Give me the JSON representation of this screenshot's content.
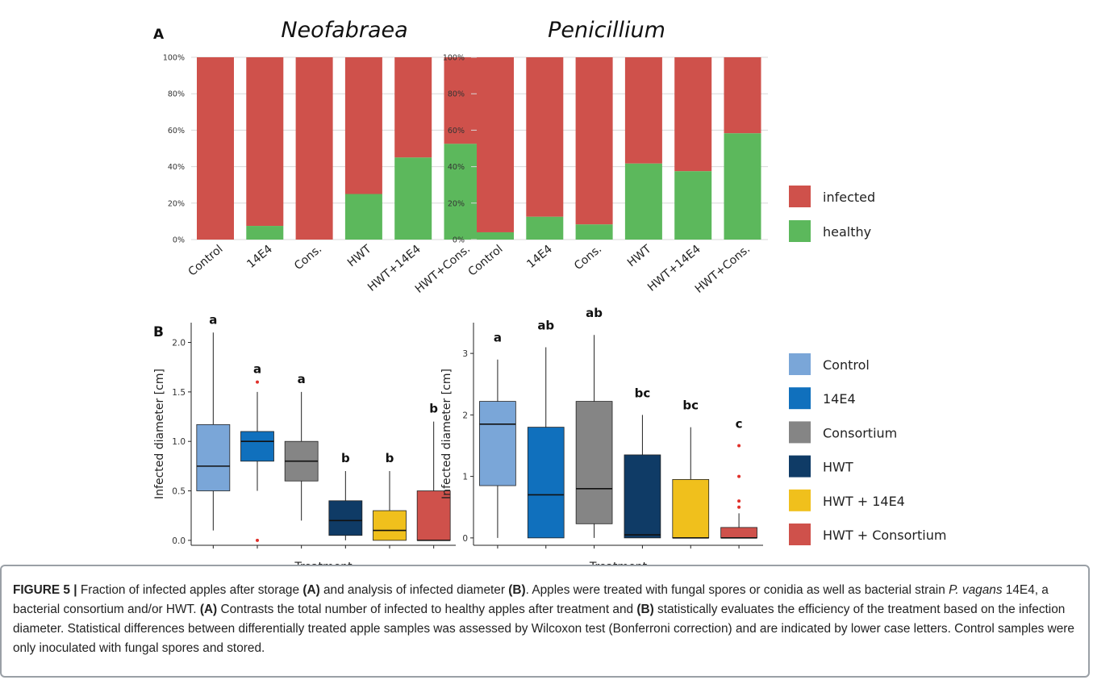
{
  "figure": {
    "panel_a_label": "A",
    "panel_b_label": "B",
    "legend_a": [
      {
        "label": "infected",
        "color": "#cf514b"
      },
      {
        "label": "healthy",
        "color": "#5cb85c"
      }
    ],
    "legend_b": [
      {
        "label": "Control",
        "color": "#7aa6d8"
      },
      {
        "label": "14E4",
        "color": "#1070bd"
      },
      {
        "label": "Consortium",
        "color": "#858585"
      },
      {
        "label": "HWT",
        "color": "#0f3b66"
      },
      {
        "label": "HWT + 14E4",
        "color": "#f0c01c"
      },
      {
        "label": "HWT + Consortium",
        "color": "#cf514b"
      }
    ]
  },
  "chart_data": [
    {
      "type": "bar",
      "stacked": true,
      "title": "Neofabraea",
      "categories": [
        "Control",
        "14E4",
        "Cons.",
        "HWT",
        "HWT+14E4",
        "HWT+Cons."
      ],
      "series": [
        {
          "name": "healthy",
          "values": [
            0,
            7.5,
            0,
            25,
            45,
            52.5
          ]
        },
        {
          "name": "infected",
          "values": [
            100,
            92.5,
            100,
            75,
            55,
            47.5
          ]
        }
      ],
      "yticks": [
        "0%",
        "20%",
        "40%",
        "60%",
        "80%",
        "100%"
      ],
      "ylim": [
        0,
        100
      ]
    },
    {
      "type": "bar",
      "stacked": true,
      "title": "Penicillium",
      "categories": [
        "Control",
        "14E4",
        "Cons.",
        "HWT",
        "HWT+14E4",
        "HWT+Cons."
      ],
      "series": [
        {
          "name": "healthy",
          "values": [
            4,
            12.5,
            8.3,
            41.7,
            37.5,
            58.3
          ]
        },
        {
          "name": "infected",
          "values": [
            96,
            87.5,
            91.7,
            58.3,
            62.5,
            41.7
          ]
        }
      ],
      "yticks": [
        "0%",
        "20%",
        "40%",
        "60%",
        "80%",
        "100%"
      ],
      "ylim": [
        0,
        100
      ]
    },
    {
      "type": "box",
      "xlabel": "Treatment",
      "ylabel": "Infected diameter [cm]",
      "ylim": [
        -0.05,
        2.2
      ],
      "yticks": [
        0,
        0.5,
        1,
        1.5,
        2
      ],
      "ytick_labels": [
        "0.0",
        "0.5",
        "1.0",
        "1.5",
        "2.0"
      ],
      "boxes": [
        {
          "name": "Control",
          "min": 0.1,
          "q1": 0.5,
          "median": 0.75,
          "q3": 1.17,
          "max": 2.1,
          "outliers": [],
          "letter": "a"
        },
        {
          "name": "14E4",
          "min": 0.5,
          "q1": 0.8,
          "median": 1.0,
          "q3": 1.1,
          "max": 1.5,
          "outliers": [
            1.6,
            0.0
          ],
          "letter": "a"
        },
        {
          "name": "Consortium",
          "min": 0.2,
          "q1": 0.6,
          "median": 0.8,
          "q3": 1.0,
          "max": 1.5,
          "outliers": [],
          "letter": "a"
        },
        {
          "name": "HWT",
          "min": 0.0,
          "q1": 0.05,
          "median": 0.2,
          "q3": 0.4,
          "max": 0.7,
          "outliers": [],
          "letter": "b"
        },
        {
          "name": "HWT + 14E4",
          "min": 0.0,
          "q1": 0.0,
          "median": 0.1,
          "q3": 0.3,
          "max": 0.7,
          "outliers": [],
          "letter": "b"
        },
        {
          "name": "HWT + Consortium",
          "min": 0.0,
          "q1": 0.0,
          "median": 0.0,
          "q3": 0.5,
          "max": 1.2,
          "outliers": [],
          "letter": "b"
        }
      ]
    },
    {
      "type": "box",
      "xlabel": "Treatment",
      "ylabel": "Infected diameter [cm]",
      "ylim": [
        -0.12,
        3.5
      ],
      "yticks": [
        0,
        1,
        2,
        3
      ],
      "ytick_labels": [
        "0",
        "1",
        "2",
        "3"
      ],
      "boxes": [
        {
          "name": "Control",
          "min": 0.0,
          "q1": 0.85,
          "median": 1.85,
          "q3": 2.22,
          "max": 2.9,
          "outliers": [],
          "letter": "a"
        },
        {
          "name": "14E4",
          "min": 0.0,
          "q1": 0.0,
          "median": 0.7,
          "q3": 1.8,
          "max": 3.1,
          "outliers": [],
          "letter": "ab"
        },
        {
          "name": "Consortium",
          "min": 0.0,
          "q1": 0.23,
          "median": 0.8,
          "q3": 2.22,
          "max": 3.3,
          "outliers": [],
          "letter": "ab"
        },
        {
          "name": "HWT",
          "min": 0.0,
          "q1": 0.0,
          "median": 0.05,
          "q3": 1.35,
          "max": 2.0,
          "outliers": [],
          "letter": "bc"
        },
        {
          "name": "HWT + 14E4",
          "min": 0.0,
          "q1": 0.0,
          "median": 0.0,
          "q3": 0.95,
          "max": 1.8,
          "outliers": [],
          "letter": "bc"
        },
        {
          "name": "HWT + Consortium",
          "min": 0.0,
          "q1": 0.0,
          "median": 0.0,
          "q3": 0.17,
          "max": 0.4,
          "outliers": [
            0.5,
            0.6,
            1.0,
            1.5
          ],
          "letter": "c"
        }
      ]
    }
  ],
  "caption": {
    "fig_label": "FIGURE 5 |",
    "s1": " Fraction of infected apples after storage ",
    "a1": "(A)",
    "s2": " and analysis of infected diameter ",
    "b1": "(B)",
    "s3": ". Apples were treated with fungal spores or conidia as well as bacterial strain ",
    "species": "P. vagans",
    "s4": " 14E4, a bacterial consortium and/or HWT. ",
    "a2": "(A)",
    "s5": " Contrasts the total number of infected to healthy apples after treatment and ",
    "b2": "(B)",
    "s6": " statistically evaluates the efficiency of the treatment based on the infection diameter. Statistical differences between differentially treated apple samples was assessed by Wilcoxon test (Bonferroni correction) and are indicated by lower case letters. Control samples were only inoculated with fungal spores and stored."
  }
}
